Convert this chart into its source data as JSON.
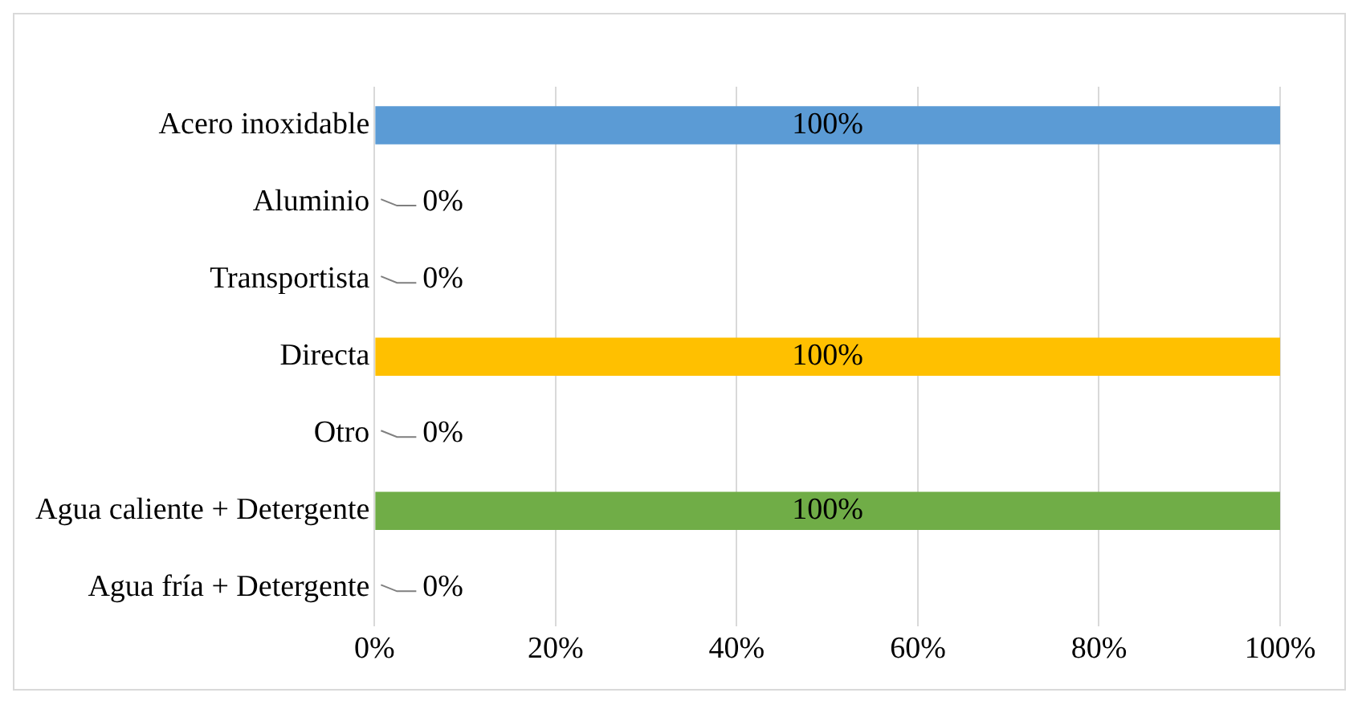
{
  "chart_data": {
    "type": "bar",
    "orientation": "horizontal",
    "categories": [
      "Acero inoxidable",
      "Aluminio",
      "Transportista",
      "Directa",
      "Otro",
      "Agua caliente + Detergente",
      "Agua fría + Detergente"
    ],
    "values": [
      100,
      0,
      0,
      100,
      0,
      100,
      0
    ],
    "colors": [
      "#5b9bd5",
      "#5b9bd5",
      "#ffc000",
      "#ffc000",
      "#70ad47",
      "#70ad47",
      "#70ad47"
    ],
    "value_labels": [
      "100%",
      "0%",
      "0%",
      "100%",
      "0%",
      "100%",
      "0%"
    ],
    "xlim": [
      0,
      100
    ],
    "xticks": [
      {
        "value": 0,
        "label": "0%"
      },
      {
        "value": 20,
        "label": "20%"
      },
      {
        "value": 40,
        "label": "40%"
      },
      {
        "value": 60,
        "label": "60%"
      },
      {
        "value": 80,
        "label": "80%"
      },
      {
        "value": 100,
        "label": "100%"
      }
    ],
    "grid": "x",
    "legend": false
  }
}
